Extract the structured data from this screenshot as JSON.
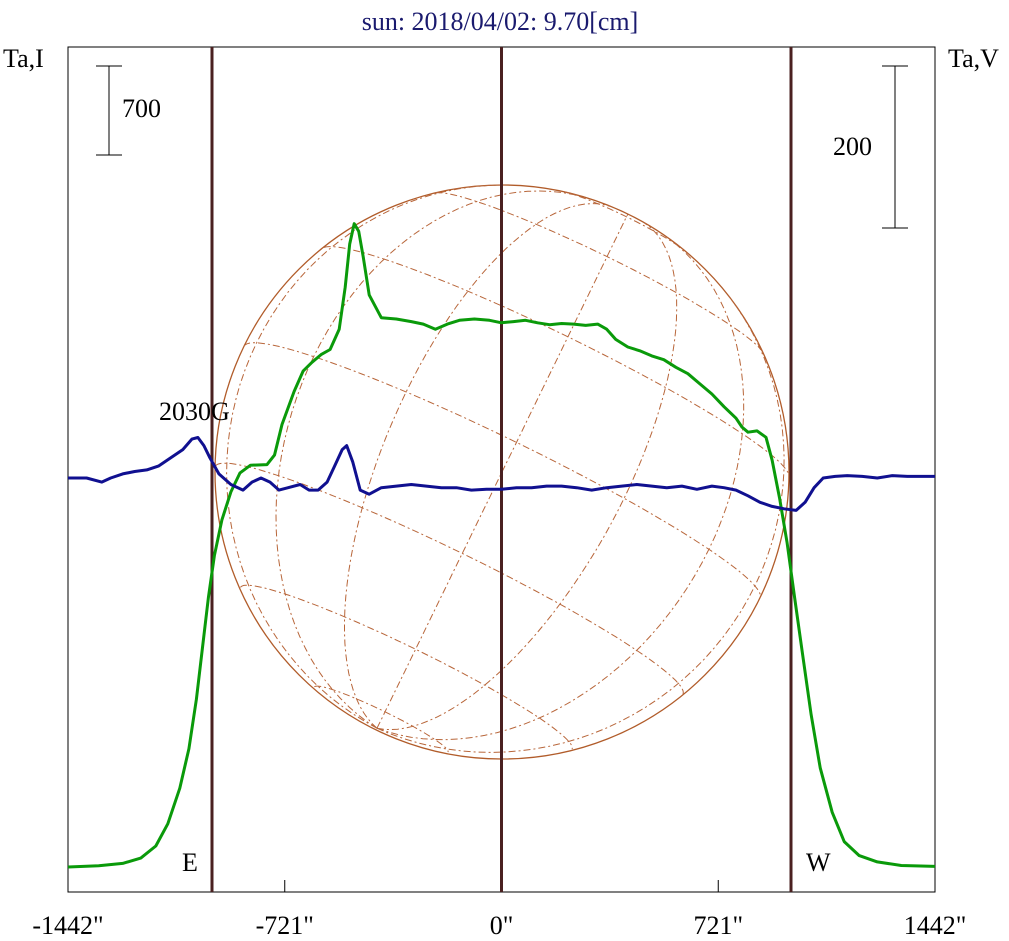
{
  "chart_data": {
    "type": "line",
    "title": "sun: 2018/04/02: 9.70[cm]",
    "ylabel_left": "Ta,I",
    "ylabel_right": "Ta,V",
    "xlim": [
      -1442,
      1442
    ],
    "x_ticks": [
      -1442,
      -721,
      0,
      721,
      1442
    ],
    "x_tick_labels": [
      "-1442\"",
      "-721\"",
      "0\"",
      "721\"",
      "1442\""
    ],
    "scale_bar_left": "700",
    "scale_bar_right": "200",
    "limb_markers": [
      {
        "x": -963,
        "label": "E"
      },
      {
        "x": 0,
        "label": ""
      },
      {
        "x": 963,
        "label": "W"
      }
    ],
    "annotation": {
      "text": "2030G",
      "x": -1000
    },
    "series": [
      {
        "id": "I",
        "color": "#0a9a0a",
        "points": [
          [
            -1442,
            0
          ],
          [
            -1340,
            10
          ],
          [
            -1260,
            28
          ],
          [
            -1200,
            70
          ],
          [
            -1150,
            165
          ],
          [
            -1110,
            340
          ],
          [
            -1070,
            620
          ],
          [
            -1040,
            930
          ],
          [
            -1015,
            1320
          ],
          [
            -995,
            1720
          ],
          [
            -975,
            2120
          ],
          [
            -955,
            2450
          ],
          [
            -930,
            2730
          ],
          [
            -900,
            2950
          ],
          [
            -870,
            3100
          ],
          [
            -835,
            3160
          ],
          [
            -780,
            3165
          ],
          [
            -755,
            3240
          ],
          [
            -730,
            3480
          ],
          [
            -690,
            3740
          ],
          [
            -660,
            3900
          ],
          [
            -630,
            3970
          ],
          [
            -600,
            4030
          ],
          [
            -570,
            4070
          ],
          [
            -540,
            4230
          ],
          [
            -520,
            4560
          ],
          [
            -505,
            4900
          ],
          [
            -490,
            5060
          ],
          [
            -475,
            5000
          ],
          [
            -460,
            4800
          ],
          [
            -440,
            4500
          ],
          [
            -400,
            4320
          ],
          [
            -350,
            4310
          ],
          [
            -300,
            4290
          ],
          [
            -260,
            4270
          ],
          [
            -220,
            4230
          ],
          [
            -180,
            4270
          ],
          [
            -140,
            4300
          ],
          [
            -90,
            4310
          ],
          [
            -40,
            4300
          ],
          [
            0,
            4280
          ],
          [
            40,
            4290
          ],
          [
            80,
            4300
          ],
          [
            120,
            4280
          ],
          [
            160,
            4265
          ],
          [
            200,
            4275
          ],
          [
            240,
            4270
          ],
          [
            280,
            4260
          ],
          [
            320,
            4270
          ],
          [
            350,
            4230
          ],
          [
            380,
            4150
          ],
          [
            420,
            4090
          ],
          [
            460,
            4060
          ],
          [
            500,
            4020
          ],
          [
            540,
            3990
          ],
          [
            580,
            3930
          ],
          [
            620,
            3880
          ],
          [
            660,
            3800
          ],
          [
            700,
            3720
          ],
          [
            740,
            3620
          ],
          [
            780,
            3530
          ],
          [
            800,
            3460
          ],
          [
            820,
            3420
          ],
          [
            850,
            3430
          ],
          [
            880,
            3380
          ],
          [
            900,
            3200
          ],
          [
            925,
            2900
          ],
          [
            950,
            2550
          ],
          [
            975,
            2120
          ],
          [
            1000,
            1700
          ],
          [
            1030,
            1200
          ],
          [
            1060,
            780
          ],
          [
            1100,
            430
          ],
          [
            1140,
            200
          ],
          [
            1190,
            90
          ],
          [
            1250,
            40
          ],
          [
            1330,
            12
          ],
          [
            1442,
            5
          ]
        ]
      },
      {
        "id": "V",
        "color": "#101090",
        "points": [
          [
            -1442,
            0
          ],
          [
            -1380,
            0
          ],
          [
            -1330,
            -5
          ],
          [
            -1300,
            0
          ],
          [
            -1260,
            5
          ],
          [
            -1220,
            8
          ],
          [
            -1180,
            10
          ],
          [
            -1140,
            15
          ],
          [
            -1100,
            25
          ],
          [
            -1060,
            35
          ],
          [
            -1030,
            48
          ],
          [
            -1010,
            50
          ],
          [
            -990,
            40
          ],
          [
            -970,
            25
          ],
          [
            -940,
            5
          ],
          [
            -900,
            -8
          ],
          [
            -860,
            -15
          ],
          [
            -830,
            -5
          ],
          [
            -800,
            0
          ],
          [
            -770,
            -5
          ],
          [
            -740,
            -15
          ],
          [
            -710,
            -12
          ],
          [
            -670,
            -8
          ],
          [
            -640,
            -15
          ],
          [
            -610,
            -15
          ],
          [
            -580,
            -5
          ],
          [
            -555,
            15
          ],
          [
            -530,
            35
          ],
          [
            -515,
            40
          ],
          [
            -495,
            20
          ],
          [
            -470,
            -15
          ],
          [
            -440,
            -20
          ],
          [
            -400,
            -12
          ],
          [
            -350,
            -10
          ],
          [
            -300,
            -8
          ],
          [
            -250,
            -10
          ],
          [
            -200,
            -12
          ],
          [
            -150,
            -12
          ],
          [
            -100,
            -15
          ],
          [
            -50,
            -14
          ],
          [
            0,
            -14
          ],
          [
            50,
            -12
          ],
          [
            100,
            -12
          ],
          [
            150,
            -10
          ],
          [
            200,
            -10
          ],
          [
            250,
            -12
          ],
          [
            300,
            -15
          ],
          [
            350,
            -12
          ],
          [
            400,
            -10
          ],
          [
            450,
            -8
          ],
          [
            500,
            -10
          ],
          [
            550,
            -12
          ],
          [
            600,
            -10
          ],
          [
            650,
            -14
          ],
          [
            700,
            -10
          ],
          [
            740,
            -12
          ],
          [
            780,
            -15
          ],
          [
            820,
            -22
          ],
          [
            860,
            -30
          ],
          [
            900,
            -35
          ],
          [
            940,
            -38
          ],
          [
            980,
            -40
          ],
          [
            1010,
            -30
          ],
          [
            1040,
            -12
          ],
          [
            1070,
            0
          ],
          [
            1110,
            2
          ],
          [
            1150,
            3
          ],
          [
            1200,
            2
          ],
          [
            1250,
            0
          ],
          [
            1300,
            3
          ],
          [
            1350,
            2
          ],
          [
            1442,
            2
          ]
        ]
      }
    ]
  }
}
